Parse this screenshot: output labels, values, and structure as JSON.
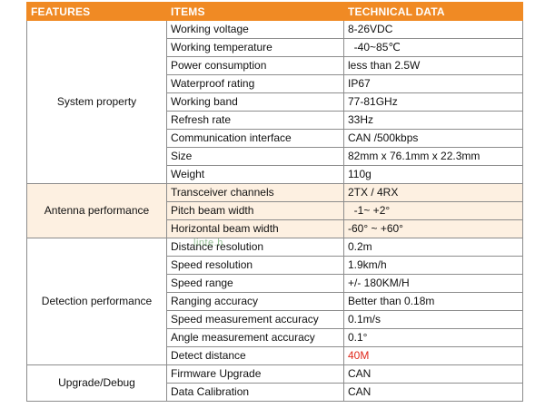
{
  "header": {
    "features": "FEATURES",
    "items": "ITEMS",
    "technical_data": "TECHNICAL DATA"
  },
  "watermark_text": "linte.h",
  "colors": {
    "header_bg": "#f08a24",
    "header_text": "#ffffff",
    "shaded_row_bg": "#fdf0e1",
    "highlight_red": "#e0281b",
    "border": "#8c8c8c"
  },
  "groups": [
    {
      "feature": "System property",
      "shaded": false,
      "rows": [
        {
          "item": "Working voltage",
          "value": "8-26VDC"
        },
        {
          "item": "Working temperature",
          "value": "  -40~85℃"
        },
        {
          "item": "Power consumption",
          "value": "less than 2.5W"
        },
        {
          "item": "Waterproof rating",
          "value": "IP67"
        },
        {
          "item": "Working band",
          "value": "77-81GHz"
        },
        {
          "item": "Refresh rate",
          "value": "33Hz"
        },
        {
          "item": "Communication interface",
          "value": "CAN /500kbps"
        },
        {
          "item": "Size",
          "value": "82mm x 76.1mm x 22.3mm"
        },
        {
          "item": "Weight",
          "value": "110g"
        }
      ]
    },
    {
      "feature": "Antenna performance",
      "shaded": true,
      "rows": [
        {
          "item": "Transceiver channels",
          "value": "2TX / 4RX"
        },
        {
          "item": "Pitch beam width",
          "value": "  -1~ +2°"
        },
        {
          "item": "Horizontal beam width",
          "value": "-60° ~ +60°"
        }
      ]
    },
    {
      "feature": "Detection performance",
      "shaded": false,
      "rows": [
        {
          "item": "Distance resolution",
          "value": "0.2m"
        },
        {
          "item": "Speed resolution",
          "value": "1.9km/h"
        },
        {
          "item": "Speed range",
          "value": "+/- 180KM/H"
        },
        {
          "item": "Ranging accuracy",
          "value": "Better than 0.18m"
        },
        {
          "item": "Speed measurement accuracy",
          "value": "0.1m/s"
        },
        {
          "item": "Angle measurement accuracy",
          "value": "0.1°"
        },
        {
          "item": "Detect distance",
          "value": "40M",
          "red": true
        }
      ]
    },
    {
      "feature": "Upgrade/Debug",
      "shaded": false,
      "rows": [
        {
          "item": "Firmware Upgrade",
          "value": "CAN"
        },
        {
          "item": "Data Calibration",
          "value": "CAN"
        }
      ]
    }
  ]
}
